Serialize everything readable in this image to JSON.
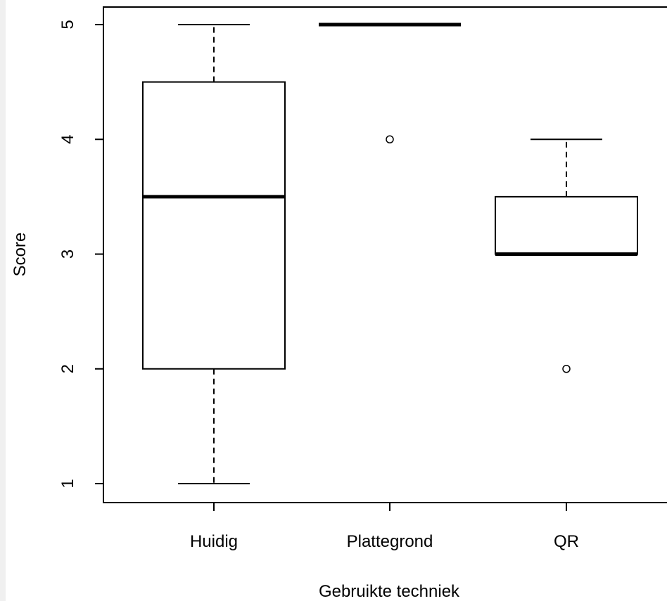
{
  "chart_data": {
    "type": "boxplot",
    "xlabel": "Gebruikte techniek",
    "ylabel": "Score",
    "ylim": [
      0.84,
      5.15
    ],
    "yticks": [
      1,
      2,
      3,
      4,
      5
    ],
    "categories": [
      "Huidig",
      "Plattegrond",
      "QR"
    ],
    "boxes": [
      {
        "category": "Huidig",
        "whisker_low": 1,
        "q1": 2,
        "median": 3.5,
        "q3": 4.5,
        "whisker_high": 5,
        "outliers": []
      },
      {
        "category": "Plattegrond",
        "whisker_low": 5,
        "q1": 5,
        "median": 5,
        "q3": 5,
        "whisker_high": 5,
        "outliers": [
          4
        ]
      },
      {
        "category": "QR",
        "whisker_low": 3,
        "q1": 3,
        "median": 3,
        "q3": 3.5,
        "whisker_high": 4,
        "outliers": [
          2
        ]
      }
    ],
    "grid": false,
    "legend": "none"
  }
}
